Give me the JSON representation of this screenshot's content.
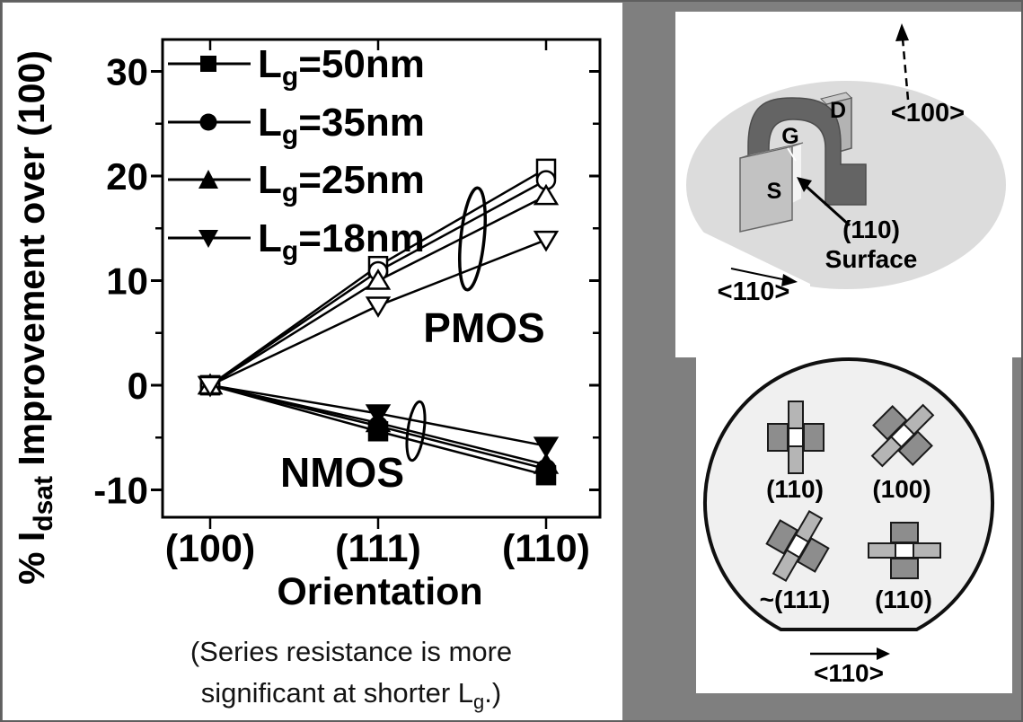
{
  "background": {
    "canvas_gray": "#7f7f7f",
    "panel_white": "#ffffff"
  },
  "chart": {
    "legend": [
      {
        "pre": "L",
        "sub": "g",
        "post": "=50nm",
        "marker": "square"
      },
      {
        "pre": "L",
        "sub": "g",
        "post": "=35nm",
        "marker": "circle"
      },
      {
        "pre": "L",
        "sub": "g",
        "post": "=25nm",
        "marker": "triangle-up"
      },
      {
        "pre": "L",
        "sub": "g",
        "post": "=18nm",
        "marker": "triangle-down"
      }
    ],
    "ylabel": {
      "pre": "% I",
      "sub": "dsat",
      "post": " Improvement over (100)"
    },
    "xlabel": "Orientation",
    "annotations": {
      "pmos": "PMOS",
      "nmos": "NMOS"
    },
    "caption": {
      "line1": "(Series resistance is more",
      "line2_pre": "significant at shorter L",
      "line2_sub": "g",
      "line2_post": ".)"
    }
  },
  "chart_data": {
    "type": "line",
    "title": "",
    "categories": [
      "(100)",
      "(111)",
      "(110)"
    ],
    "xlabel": "Orientation",
    "ylabel": "% Idsat Improvement over (100)",
    "ylim": [
      -12.6,
      33
    ],
    "yticks": [
      30,
      20,
      10,
      0,
      -10
    ],
    "yticks_minor": [
      25,
      15,
      5,
      -5
    ],
    "grid": false,
    "legend_position": "top-left",
    "series": [
      {
        "name": "NMOS Lg=50nm",
        "marker": "square",
        "fill": "filled",
        "values": [
          0,
          -4.4,
          -8.6
        ]
      },
      {
        "name": "NMOS Lg=35nm",
        "marker": "circle",
        "fill": "filled",
        "values": [
          0,
          -3.9,
          -8.0
        ]
      },
      {
        "name": "NMOS Lg=25nm",
        "marker": "triangle-up",
        "fill": "filled",
        "values": [
          0,
          -3.6,
          -7.6
        ]
      },
      {
        "name": "NMOS Lg=18nm",
        "marker": "triangle-down",
        "fill": "filled",
        "values": [
          0,
          -2.7,
          -5.8
        ]
      },
      {
        "name": "PMOS Lg=50nm",
        "marker": "square",
        "fill": "open",
        "values": [
          0,
          11.4,
          20.7
        ]
      },
      {
        "name": "PMOS Lg=35nm",
        "marker": "circle",
        "fill": "open",
        "values": [
          0,
          10.9,
          19.6
        ]
      },
      {
        "name": "PMOS Lg=25nm",
        "marker": "triangle-up",
        "fill": "open",
        "values": [
          0,
          10.0,
          18.1
        ]
      },
      {
        "name": "PMOS Lg=18nm",
        "marker": "triangle-down",
        "fill": "open",
        "values": [
          0,
          7.6,
          13.9
        ]
      }
    ]
  },
  "device_diagram": {
    "drain_label": "D",
    "gate_label": "G",
    "source_label": "S",
    "surface_label_line1": "(110)",
    "surface_label_line2": "Surface",
    "direction_up": "<100>",
    "direction_lateral": "<110>"
  },
  "wafer_diagram": {
    "labels": {
      "top_left": "(110)",
      "top_right": "(100)",
      "bottom_left": "~(111)",
      "bottom_right": "(110)"
    },
    "direction": "<110>"
  }
}
